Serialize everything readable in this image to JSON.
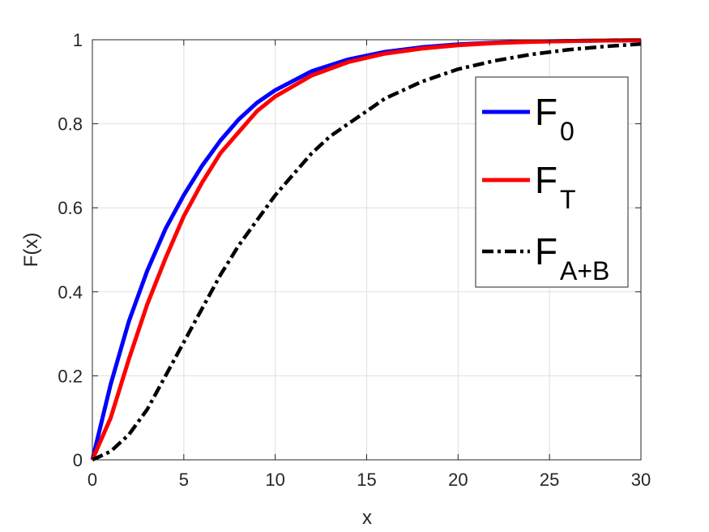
{
  "chart_data": {
    "type": "line",
    "title": "",
    "xlabel": "x",
    "ylabel": "F(x)",
    "xlim": [
      0,
      30
    ],
    "ylim": [
      0,
      1
    ],
    "xticks": [
      0,
      5,
      10,
      15,
      20,
      25,
      30
    ],
    "yticks": [
      0,
      0.2,
      0.4,
      0.6,
      0.8,
      1
    ],
    "xtick_labels": [
      "0",
      "5",
      "10",
      "15",
      "20",
      "25",
      "30"
    ],
    "ytick_labels": [
      "0",
      "0.2",
      "0.4",
      "0.6",
      "0.8",
      "1"
    ],
    "grid": true,
    "legend_position": "top-right",
    "series": [
      {
        "name": "F0",
        "legend_main": "F",
        "legend_sub": "0",
        "color": "#0000ff",
        "style": "solid",
        "x": [
          0,
          1,
          2,
          3,
          4,
          5,
          6,
          7,
          8,
          9,
          10,
          12,
          14,
          16,
          18,
          20,
          22,
          24,
          26,
          28,
          30
        ],
        "y": [
          0,
          0.18,
          0.33,
          0.45,
          0.55,
          0.63,
          0.7,
          0.76,
          0.81,
          0.85,
          0.88,
          0.925,
          0.953,
          0.971,
          0.982,
          0.989,
          0.993,
          0.996,
          0.997,
          0.998,
          0.999
        ]
      },
      {
        "name": "FT",
        "legend_main": "F",
        "legend_sub": "T",
        "color": "#ff0000",
        "style": "solid",
        "x": [
          0,
          1,
          2,
          3,
          4,
          5,
          6,
          7,
          8,
          9,
          10,
          12,
          14,
          16,
          18,
          20,
          22,
          24,
          26,
          28,
          30
        ],
        "y": [
          0,
          0.1,
          0.24,
          0.37,
          0.48,
          0.58,
          0.66,
          0.73,
          0.78,
          0.83,
          0.865,
          0.915,
          0.947,
          0.967,
          0.979,
          0.987,
          0.992,
          0.995,
          0.997,
          0.998,
          0.999
        ]
      },
      {
        "name": "FA+B",
        "legend_main": "F",
        "legend_sub": "A+B",
        "color": "#000000",
        "style": "dashed",
        "x": [
          0,
          1,
          2,
          3,
          4,
          5,
          6,
          7,
          8,
          9,
          10,
          11,
          12,
          13,
          14,
          15,
          16,
          18,
          20,
          22,
          24,
          26,
          28,
          30
        ],
        "y": [
          0,
          0.02,
          0.06,
          0.12,
          0.2,
          0.28,
          0.36,
          0.44,
          0.51,
          0.57,
          0.63,
          0.68,
          0.73,
          0.77,
          0.8,
          0.83,
          0.86,
          0.9,
          0.93,
          0.95,
          0.965,
          0.976,
          0.984,
          0.99
        ]
      }
    ]
  }
}
